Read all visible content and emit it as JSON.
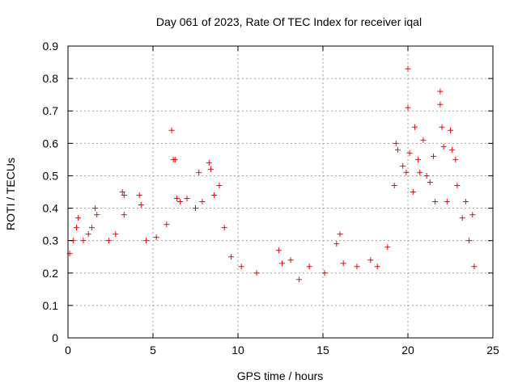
{
  "chart_data": {
    "type": "scatter",
    "title": "Day 061 of 2023, Rate Of TEC Index for receiver iqal",
    "xlabel": "GPS time / hours",
    "ylabel": "ROTI / TECUs",
    "xlim": [
      0,
      25
    ],
    "ylim": [
      0,
      0.9
    ],
    "xticks": [
      0,
      5,
      10,
      15,
      20,
      25
    ],
    "yticks": [
      0,
      0.1,
      0.2,
      0.3,
      0.4,
      0.5,
      0.6,
      0.7,
      0.8,
      0.9
    ],
    "grid": true,
    "marker": "+",
    "color": "#ff0000",
    "series": [
      {
        "points": [
          [
            0.1,
            0.26
          ],
          [
            0.3,
            0.3
          ],
          [
            0.5,
            0.34
          ],
          [
            0.6,
            0.37
          ],
          [
            0.9,
            0.3
          ],
          [
            1.2,
            0.32
          ],
          [
            1.4,
            0.34
          ],
          [
            1.6,
            0.4
          ],
          [
            1.7,
            0.38
          ],
          [
            2.4,
            0.3
          ],
          [
            2.8,
            0.32
          ],
          [
            3.2,
            0.45
          ],
          [
            3.3,
            0.44
          ],
          [
            3.3,
            0.38
          ],
          [
            4.2,
            0.44
          ],
          [
            4.3,
            0.41
          ],
          [
            4.6,
            0.3
          ],
          [
            5.2,
            0.31
          ],
          [
            5.8,
            0.35
          ],
          [
            6.1,
            0.64
          ],
          [
            6.2,
            0.55
          ],
          [
            6.3,
            0.55
          ],
          [
            6.4,
            0.43
          ],
          [
            6.6,
            0.42
          ],
          [
            7.0,
            0.43
          ],
          [
            7.5,
            0.4
          ],
          [
            7.7,
            0.51
          ],
          [
            7.9,
            0.42
          ],
          [
            8.3,
            0.54
          ],
          [
            8.4,
            0.52
          ],
          [
            8.6,
            0.44
          ],
          [
            8.9,
            0.47
          ],
          [
            9.2,
            0.34
          ],
          [
            9.6,
            0.25
          ],
          [
            10.2,
            0.22
          ],
          [
            11.1,
            0.2
          ],
          [
            12.4,
            0.27
          ],
          [
            12.6,
            0.23
          ],
          [
            13.1,
            0.24
          ],
          [
            13.6,
            0.18
          ],
          [
            14.2,
            0.22
          ],
          [
            15.1,
            0.2
          ],
          [
            15.8,
            0.29
          ],
          [
            16.0,
            0.32
          ],
          [
            16.2,
            0.23
          ],
          [
            17.0,
            0.22
          ],
          [
            17.8,
            0.24
          ],
          [
            18.2,
            0.22
          ],
          [
            18.8,
            0.28
          ],
          [
            19.2,
            0.47
          ],
          [
            19.3,
            0.6
          ],
          [
            19.4,
            0.58
          ],
          [
            19.7,
            0.53
          ],
          [
            19.9,
            0.51
          ],
          [
            20.0,
            0.83
          ],
          [
            20.0,
            0.71
          ],
          [
            20.1,
            0.57
          ],
          [
            20.3,
            0.45
          ],
          [
            20.4,
            0.65
          ],
          [
            20.6,
            0.55
          ],
          [
            20.7,
            0.51
          ],
          [
            20.9,
            0.61
          ],
          [
            21.1,
            0.5
          ],
          [
            21.3,
            0.48
          ],
          [
            21.5,
            0.56
          ],
          [
            21.6,
            0.42
          ],
          [
            21.9,
            0.76
          ],
          [
            21.9,
            0.72
          ],
          [
            22.0,
            0.65
          ],
          [
            22.1,
            0.59
          ],
          [
            22.3,
            0.42
          ],
          [
            22.5,
            0.64
          ],
          [
            22.6,
            0.58
          ],
          [
            22.8,
            0.55
          ],
          [
            22.9,
            0.47
          ],
          [
            23.2,
            0.37
          ],
          [
            23.4,
            0.42
          ],
          [
            23.6,
            0.3
          ],
          [
            23.8,
            0.38
          ],
          [
            23.9,
            0.22
          ]
        ]
      }
    ]
  }
}
